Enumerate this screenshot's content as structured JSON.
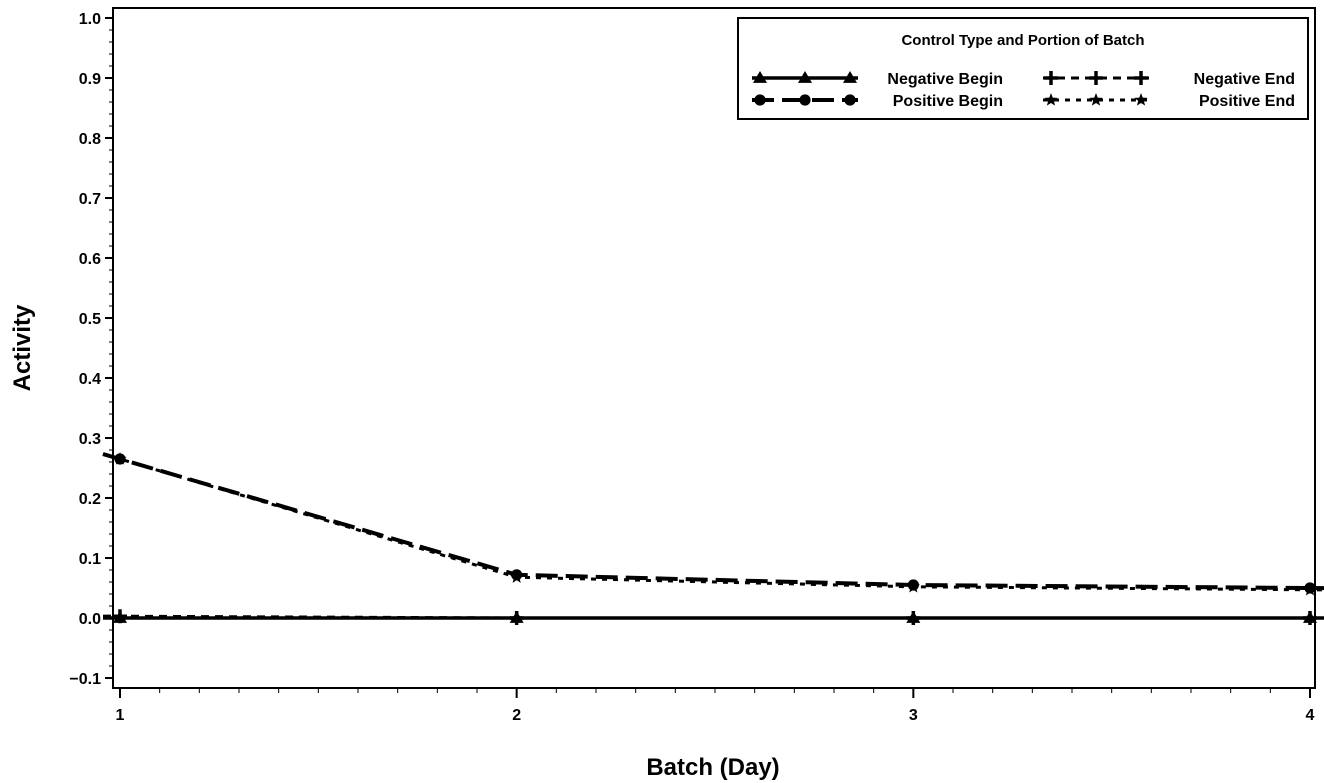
{
  "chart_data": {
    "type": "line",
    "xlabel": "Batch (Day)",
    "ylabel": "Activity",
    "x": [
      1,
      2,
      3,
      4
    ],
    "xlim": [
      1,
      4
    ],
    "ylim": [
      -0.12,
      1.02
    ],
    "x_ticks": [
      "1",
      "2",
      "3",
      "4"
    ],
    "y_ticks": [
      "-0.1",
      "0.0",
      "0.1",
      "0.2",
      "0.3",
      "0.4",
      "0.5",
      "0.6",
      "0.7",
      "0.8",
      "0.9",
      "1.0"
    ],
    "grid": false,
    "legend": {
      "title": "Control Type and Portion of Batch",
      "placement": "top-right"
    },
    "series": [
      {
        "name": "Negative Begin",
        "values": [
          0.0,
          0.0,
          0.0,
          0.0
        ],
        "marker": "triangle",
        "line": "solid"
      },
      {
        "name": "Negative End",
        "values": [
          0.003,
          0.0,
          0.0,
          0.0
        ],
        "marker": "plus",
        "line": "short-dash"
      },
      {
        "name": "Positive Begin",
        "values": [
          0.265,
          0.072,
          0.055,
          0.05
        ],
        "marker": "circle",
        "line": "long-dash"
      },
      {
        "name": "Positive End",
        "values": [
          0.265,
          0.068,
          0.052,
          0.047
        ],
        "marker": "star",
        "line": "dot-dash"
      }
    ]
  }
}
